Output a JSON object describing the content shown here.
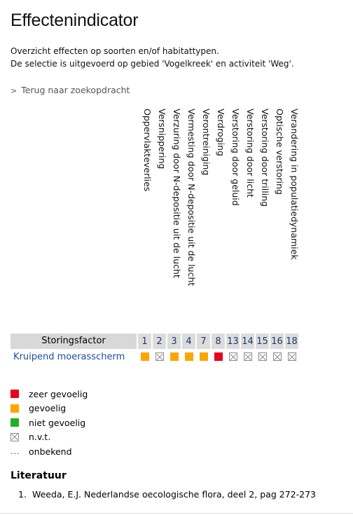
{
  "page": {
    "title": "Effectenindicator",
    "intro_line1": "Overzicht effecten op soorten en/of habitattypen.",
    "intro_line2": "De selectie is uitgevoerd op gebied 'Vogelkreek' en activiteit 'Weg'.",
    "back_link": "Terug naar zoekopdracht"
  },
  "columns": [
    {
      "num": "1",
      "label": "Oppervlakteverlies"
    },
    {
      "num": "2",
      "label": "Versnippering"
    },
    {
      "num": "3",
      "label": "Verzuring door N-depositie uit de lucht"
    },
    {
      "num": "4",
      "label": "Vermesting door N-depositie uit de lucht"
    },
    {
      "num": "7",
      "label": "Verontreiniging"
    },
    {
      "num": "8",
      "label": "Verdroging"
    },
    {
      "num": "13",
      "label": "Verstoring door geluid"
    },
    {
      "num": "14",
      "label": "Verstoring door licht"
    },
    {
      "num": "15",
      "label": "Verstoring door trilling"
    },
    {
      "num": "16",
      "label": "Optische verstoring"
    },
    {
      "num": "18",
      "label": "Verandering in populatiedynamiek"
    }
  ],
  "table": {
    "header_label": "Storingsfactor",
    "rows": [
      {
        "species": "Kruipend moerasscherm",
        "cells": [
          "gevoelig",
          "n.v.t.",
          "gevoelig",
          "gevoelig",
          "gevoelig",
          "zeer gevoelig",
          "n.v.t.",
          "n.v.t.",
          "n.v.t.",
          "n.v.t.",
          "n.v.t."
        ]
      }
    ]
  },
  "legend": [
    {
      "key": "zeer-gevoelig",
      "label": "zeer gevoelig",
      "color": "#e8001c"
    },
    {
      "key": "gevoelig",
      "label": "gevoelig",
      "color": "#ffa500"
    },
    {
      "key": "niet-gevoelig",
      "label": "niet gevoelig",
      "color": "#22b022"
    },
    {
      "key": "nvt",
      "label": "n.v.t.",
      "icon": "crossed-box-icon"
    },
    {
      "key": "onbekend",
      "label": "onbekend",
      "icon": "ellipsis-icon"
    }
  ],
  "literature": {
    "title": "Literatuur",
    "items": [
      {
        "num": "1.",
        "text": "Weeda, E.J. Nederlandse oecologische flora, deel 2, pag 272-273"
      }
    ]
  }
}
